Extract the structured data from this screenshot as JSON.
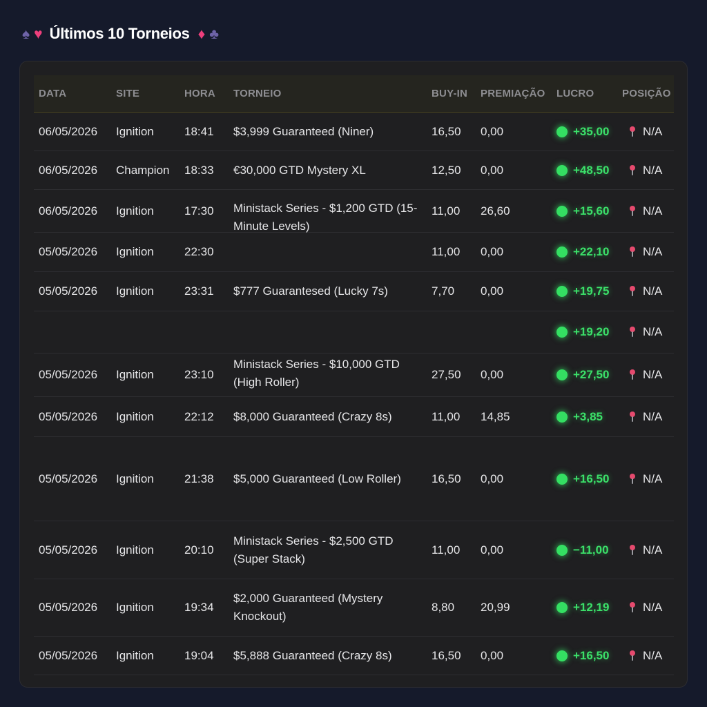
{
  "header": {
    "title": "Últimos 10 Torneios",
    "icons": [
      "spade-icon",
      "heart-icon",
      "diamond-icon",
      "club-icon"
    ]
  },
  "table": {
    "columns": [
      "DATA",
      "SITE",
      "HORA",
      "TORNEIO",
      "BUY-IN",
      "PREMIAÇÃO",
      "LUCRO",
      "POSIÇÃO"
    ],
    "rows": [
      {
        "data": "06/05/2026",
        "site": "Ignition",
        "hora": "18:41",
        "torneio": "$3,999 Guaranteed (Niner)",
        "buyin": "16,50",
        "premiacao": "0,00",
        "lucro": "+35,00",
        "posicao": "N/A"
      },
      {
        "data": "06/05/2026",
        "site": "Champion",
        "hora": "18:33",
        "torneio": "€30,000 GTD Mystery XL",
        "buyin": "12,50",
        "premiacao": "0,00",
        "lucro": "+48,50",
        "posicao": "N/A"
      },
      {
        "data": "06/05/2026",
        "site": "Ignition",
        "hora": "17:30",
        "torneio": "",
        "buyin": "11,00",
        "premiacao": "26,60",
        "lucro": "+15,60",
        "posicao": "N/A"
      },
      {
        "data": "05/05/2026",
        "site": "Ignition",
        "hora": "22:30",
        "torneio": "",
        "buyin": "11,00",
        "premiacao": "0,00",
        "lucro": "+22,10",
        "posicao": "N/A"
      },
      {
        "data": "05/05/2026",
        "site": "Ignition",
        "hora": "23:31",
        "torneio": "$777 Guarantesed (Lucky 7s)",
        "buyin": "7,70",
        "premiacao": "0,00",
        "lucro": "+19,75",
        "posicao": "N/A"
      },
      {
        "data": "",
        "site": "",
        "hora": "",
        "torneio": "",
        "buyin": "",
        "premiacao": "",
        "lucro": "+19,20",
        "posicao": "N/A"
      },
      {
        "data": "05/05/2026",
        "site": "Ignition",
        "hora": "23:10",
        "torneio": "",
        "buyin": "27,50",
        "premiacao": "0,00",
        "lucro": "+27,50",
        "posicao": "N/A"
      },
      {
        "data": "05/05/2026",
        "site": "Ignition",
        "hora": "22:12",
        "torneio": "$8,000 Guaranteed (Crazy 8s)",
        "buyin": "11,00",
        "premiacao": "14,85",
        "lucro": "+3,85",
        "posicao": "N/A"
      },
      {
        "data": "05/05/2026",
        "site": "Ignition",
        "hora": "21:38",
        "torneio": "$5,000 Guaranteed (Low Roller)",
        "buyin": "16,50",
        "premiacao": "0,00",
        "lucro": "+16,50",
        "posicao": "N/A"
      },
      {
        "data": "05/05/2026",
        "site": "Ignition",
        "hora": "20:10",
        "torneio": "Ministack Series - $2,500 GTD (Super Stack)",
        "buyin": "11,00",
        "premiacao": "0,00",
        "lucro": "−11,00",
        "posicao": "N/A"
      },
      {
        "data": "05/05/2026",
        "site": "Ignition",
        "hora": "19:34",
        "torneio": "$2,000 Guaranteed (Mystery Knockout)",
        "buyin": "8,80",
        "premiacao": "20,99",
        "lucro": "+12,19",
        "posicao": "N/A"
      },
      {
        "data": "05/05/2026",
        "site": "Ignition",
        "hora": "19:04",
        "torneio": "$5,888 Guaranteed (Crazy 8s)",
        "buyin": "16,50",
        "premiacao": "0,00",
        "lucro": "+16,50",
        "posicao": "N/A"
      }
    ],
    "merged_torneio": [
      {
        "text": "Ministack Series - $1,200 GTD (15-Minute Levels)"
      },
      {
        "text": "Ministack Series - $10,000 GTD (High Roller)"
      }
    ]
  }
}
